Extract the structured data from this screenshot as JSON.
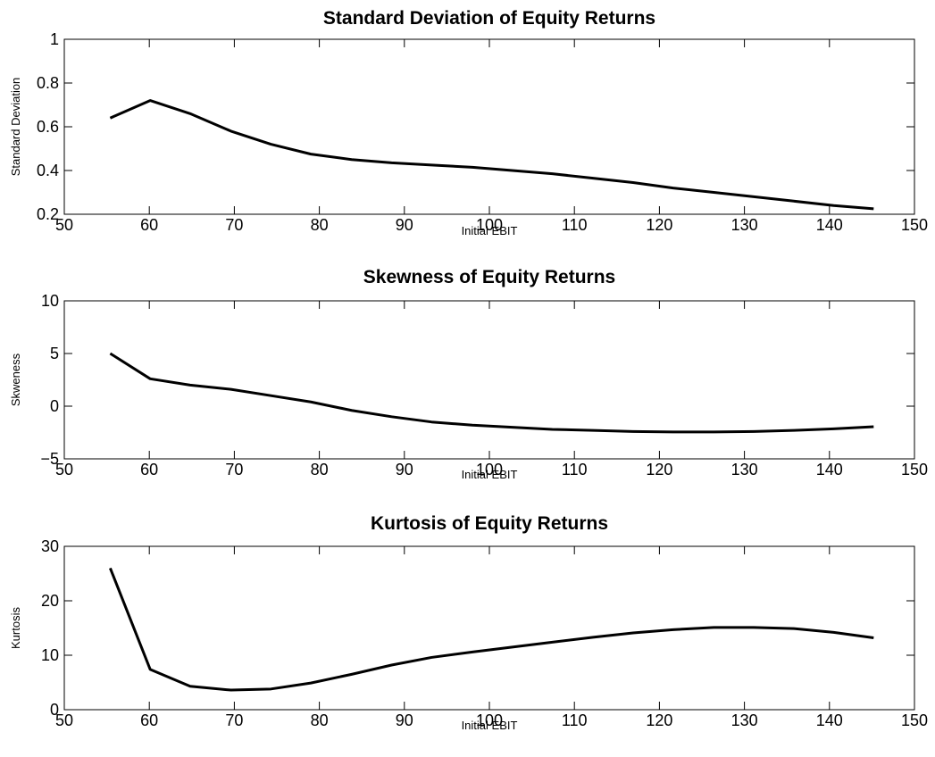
{
  "chart_data": [
    {
      "type": "line",
      "title": "Standard Deviation of Equity Returns",
      "xlabel": "Initial EBIT",
      "ylabel": "Standard Deviation",
      "x": [
        55.4,
        60.1,
        64.8,
        69.6,
        74.3,
        79.0,
        83.8,
        88.5,
        93.2,
        98.0,
        102.7,
        107.4,
        112.2,
        116.9,
        121.6,
        126.4,
        131.1,
        135.8,
        140.5,
        145.2
      ],
      "series": [
        {
          "name": "Standard Deviation",
          "color": "#000000",
          "values": [
            0.64,
            0.72,
            0.66,
            0.58,
            0.52,
            0.475,
            0.45,
            0.435,
            0.425,
            0.415,
            0.4,
            0.385,
            0.365,
            0.345,
            0.32,
            0.3,
            0.28,
            0.26,
            0.24,
            0.225
          ]
        }
      ],
      "xlim": [
        50,
        150
      ],
      "xticks": [
        50,
        60,
        70,
        80,
        90,
        100,
        110,
        120,
        130,
        140,
        150
      ],
      "ylim": [
        0.2,
        1
      ],
      "yticks": [
        0.2,
        0.4,
        0.6,
        0.8,
        1
      ],
      "grid": false
    },
    {
      "type": "line",
      "title": "Skewness of Equity Returns",
      "xlabel": "Initial EBIT",
      "ylabel": "Skweness",
      "x": [
        55.4,
        60.1,
        64.8,
        69.6,
        74.3,
        79.0,
        83.8,
        88.5,
        93.2,
        98.0,
        102.7,
        107.4,
        112.2,
        116.9,
        121.6,
        126.4,
        131.1,
        135.8,
        140.5,
        145.2
      ],
      "series": [
        {
          "name": "Skweness",
          "color": "#000000",
          "values": [
            5.0,
            2.6,
            2.0,
            1.6,
            1.0,
            0.4,
            -0.4,
            -1.0,
            -1.5,
            -1.8,
            -2.0,
            -2.2,
            -2.3,
            -2.4,
            -2.45,
            -2.45,
            -2.4,
            -2.3,
            -2.15,
            -1.95
          ]
        }
      ],
      "xlim": [
        50,
        150
      ],
      "xticks": [
        50,
        60,
        70,
        80,
        90,
        100,
        110,
        120,
        130,
        140,
        150
      ],
      "ylim": [
        -5,
        10
      ],
      "yticks": [
        {
          "value": -5,
          "label": "−5"
        },
        0,
        5,
        10
      ],
      "grid": false
    },
    {
      "type": "line",
      "title": "Kurtosis of Equity Returns",
      "xlabel": "Initial EBIT",
      "ylabel": "Kurtosis",
      "x": [
        55.4,
        60.1,
        64.8,
        69.6,
        74.3,
        79.0,
        83.8,
        88.5,
        93.2,
        98.0,
        102.7,
        107.4,
        112.2,
        116.9,
        121.6,
        126.4,
        131.1,
        135.8,
        140.5,
        145.2
      ],
      "series": [
        {
          "name": "Kurtosis",
          "color": "#000000",
          "values": [
            26,
            7.4,
            4.3,
            3.6,
            3.8,
            4.9,
            6.5,
            8.2,
            9.6,
            10.6,
            11.5,
            12.4,
            13.3,
            14.1,
            14.7,
            15.1,
            15.1,
            14.9,
            14.2,
            13.2
          ]
        }
      ],
      "xlim": [
        50,
        150
      ],
      "xticks": [
        50,
        60,
        70,
        80,
        90,
        100,
        110,
        120,
        130,
        140,
        150
      ],
      "ylim": [
        0,
        30
      ],
      "yticks": [
        0,
        10,
        20,
        30
      ],
      "grid": false
    }
  ]
}
